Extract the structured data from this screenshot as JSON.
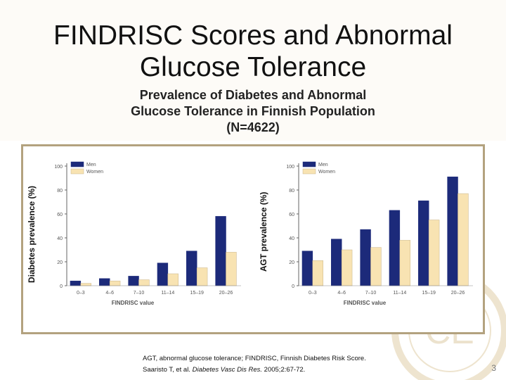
{
  "slide": {
    "title_line1": "FINDRISC Scores and Abnormal",
    "title_line2": "Glucose Tolerance",
    "subtitle_line1": "Prevalence of Diabetes and Abnormal",
    "subtitle_line2": "Glucose Tolerance in Finnish Population",
    "subtitle_line3": "(N=4622)",
    "footnote": "AGT, abnormal glucose tolerance; FINDRISC, Finnish Diabetes Risk Score.",
    "citation_authors": "Saaristo T, et al. ",
    "citation_journal": "Diabetes Vasc Dis Res.",
    "citation_rest": " 2005;2:67-72.",
    "page_number": "3"
  },
  "colors": {
    "men": "#1c2a7a",
    "women": "#f8e3b2",
    "frame": "#b3a27f",
    "women_stroke": "#c8b48a"
  },
  "chart_data": [
    {
      "type": "bar",
      "ylabel": "Diabetes prevalence (%)",
      "xlabel": "FINDRISC value",
      "categories": [
        "0–3",
        "4–6",
        "7–10",
        "11–14",
        "15–19",
        "20–26"
      ],
      "ylim": [
        0,
        100
      ],
      "yticks": [
        "0",
        "20",
        "40",
        "60",
        "80",
        "100"
      ],
      "legend_position": "top-left",
      "series": [
        {
          "name": "Men",
          "values": [
            4,
            6,
            8,
            19,
            29,
            58
          ]
        },
        {
          "name": "Women",
          "values": [
            2,
            4,
            5,
            10,
            15,
            28
          ]
        }
      ]
    },
    {
      "type": "bar",
      "ylabel": "AGT prevalence (%)",
      "xlabel": "FINDRISC value",
      "categories": [
        "0–3",
        "4–6",
        "7–10",
        "11–14",
        "15–19",
        "20–26"
      ],
      "ylim": [
        0,
        100
      ],
      "yticks": [
        "0",
        "20",
        "40",
        "60",
        "80",
        "100"
      ],
      "legend_position": "top-left",
      "series": [
        {
          "name": "Men",
          "values": [
            29,
            39,
            47,
            63,
            71,
            91
          ]
        },
        {
          "name": "Women",
          "values": [
            21,
            30,
            32,
            38,
            55,
            77
          ]
        }
      ]
    }
  ]
}
